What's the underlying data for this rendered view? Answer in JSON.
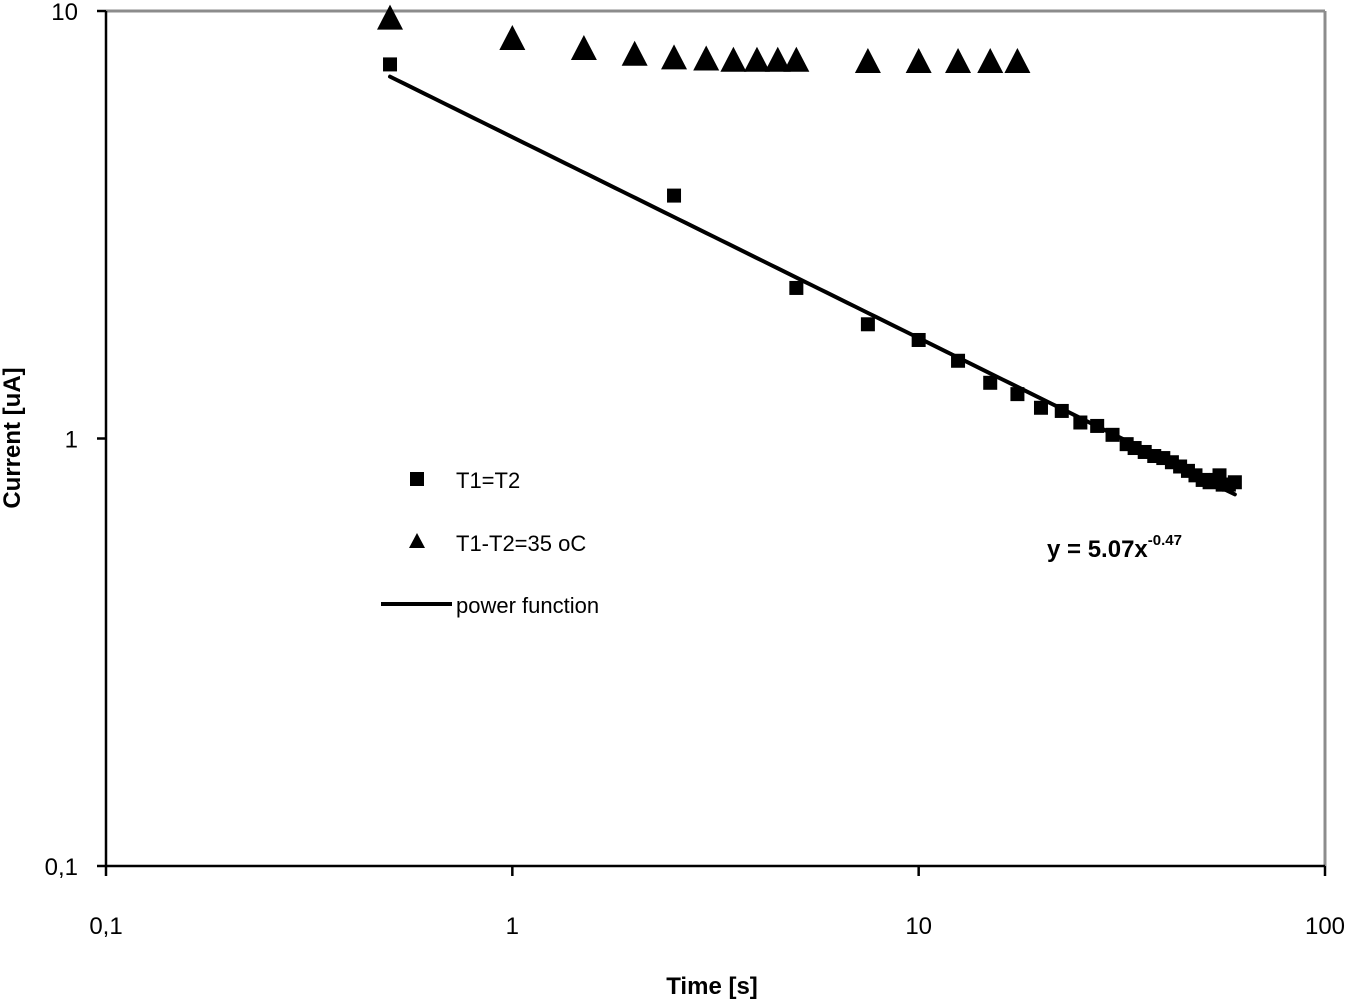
{
  "chart_data": {
    "type": "scatter",
    "title": "",
    "xlabel": "Time [s]",
    "ylabel": "Current [uA]",
    "x_scale": "log",
    "y_scale": "log",
    "xlim": [
      0.1,
      100
    ],
    "ylim": [
      0.1,
      10
    ],
    "x_ticks": [
      {
        "value": 0.1,
        "label": "0,1"
      },
      {
        "value": 1,
        "label": "1"
      },
      {
        "value": 10,
        "label": "10"
      },
      {
        "value": 100,
        "label": "100"
      }
    ],
    "y_ticks": [
      {
        "value": 0.1,
        "label": "0,1"
      },
      {
        "value": 1,
        "label": "1"
      },
      {
        "value": 10,
        "label": "10"
      }
    ],
    "grid": false,
    "legend_position": "left-center",
    "series": [
      {
        "name": "T1=T2",
        "marker": "square",
        "color": "#000000",
        "x": [
          0.5,
          2.5,
          5,
          7.5,
          10,
          12.5,
          15,
          17.5,
          20,
          22.5,
          25,
          27.5,
          30,
          32.5,
          34,
          36,
          38,
          40,
          42,
          44,
          46,
          48,
          50,
          52,
          54,
          55,
          56,
          58,
          60
        ],
        "y": [
          7.5,
          3.7,
          2.25,
          1.85,
          1.7,
          1.52,
          1.35,
          1.27,
          1.18,
          1.16,
          1.09,
          1.07,
          1.02,
          0.97,
          0.95,
          0.93,
          0.91,
          0.9,
          0.88,
          0.86,
          0.84,
          0.82,
          0.8,
          0.79,
          0.8,
          0.82,
          0.78,
          0.78,
          0.79
        ]
      },
      {
        "name": "T1-T2=35 oC",
        "marker": "triangle",
        "color": "#000000",
        "x": [
          0.5,
          1,
          1.5,
          2,
          2.5,
          3,
          3.5,
          4,
          4.5,
          5,
          7.5,
          10,
          12.5,
          15,
          17.5
        ],
        "y": [
          9.6,
          8.6,
          8.15,
          7.9,
          7.75,
          7.7,
          7.65,
          7.65,
          7.65,
          7.65,
          7.6,
          7.6,
          7.6,
          7.6,
          7.6
        ]
      },
      {
        "name": "power function",
        "marker": "line",
        "color": "#000000",
        "equation": "y = 5.07x",
        "coefficient": 5.07,
        "exponent": -0.47,
        "exponent_label": "-0.47",
        "x_range": [
          0.5,
          60
        ]
      }
    ],
    "annotations": [
      {
        "text": "y = 5.07x",
        "superscript": "-0.47"
      }
    ]
  }
}
